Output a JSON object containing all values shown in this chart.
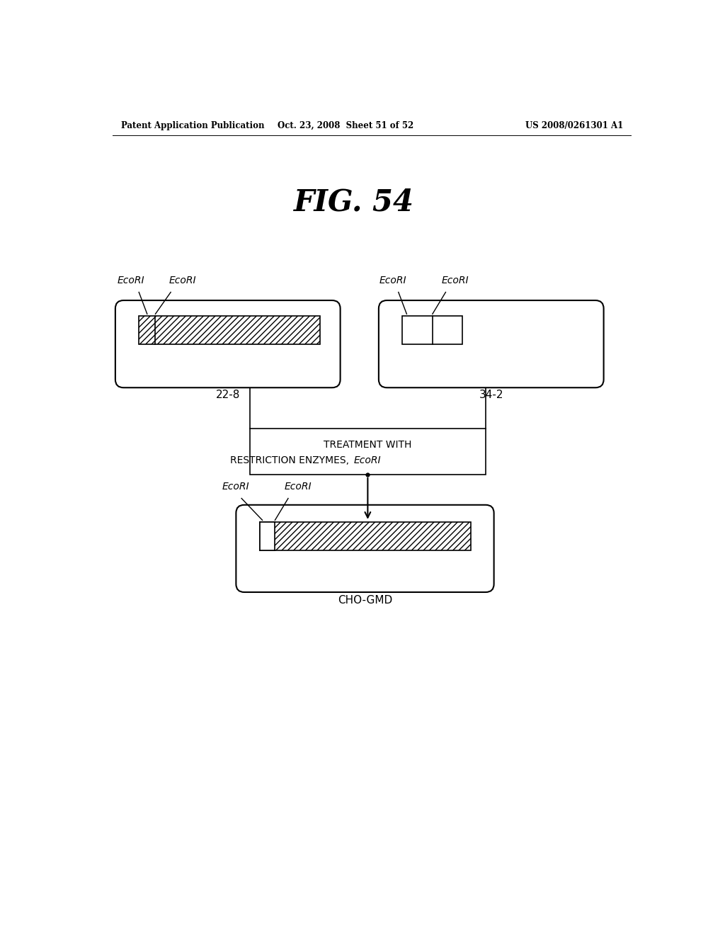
{
  "header_left": "Patent Application Publication",
  "header_mid": "Oct. 23, 2008  Sheet 51 of 52",
  "header_right": "US 2008/0261301 A1",
  "fig_title": "FIG. 54",
  "label_22_8": "22-8",
  "label_34_2": "34-2",
  "label_cho": "CHO-GMD",
  "ecori_label": "EcoRI",
  "treatment_line1": "TREATMENT WITH",
  "treatment_line2": "RESTRICTION ENZYMES, ",
  "treatment_ecori": "EcoRI",
  "bg_color": "#ffffff",
  "hatch_pattern": "////"
}
